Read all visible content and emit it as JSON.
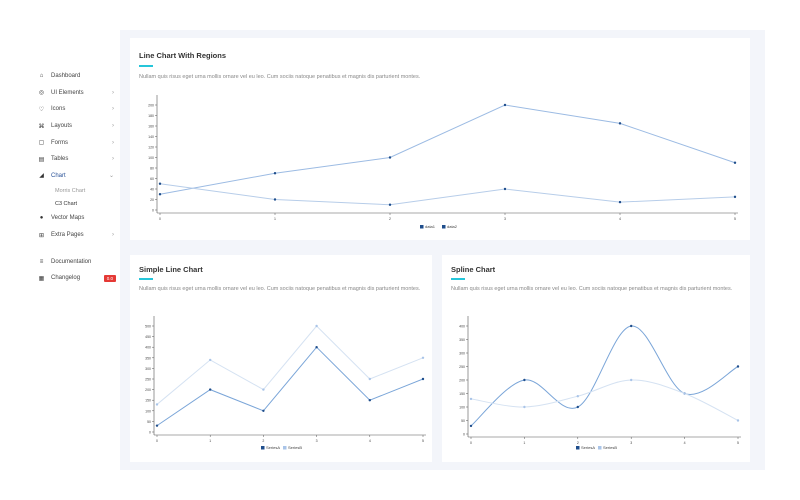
{
  "sidebar": {
    "items": [
      {
        "label": "Dashboard",
        "icon": "home-icon",
        "chev": false
      },
      {
        "label": "UI Elements",
        "icon": "globe-icon",
        "chev": true
      },
      {
        "label": "Icons",
        "icon": "heart-icon",
        "chev": true
      },
      {
        "label": "Layouts",
        "icon": "layout-icon",
        "chev": true
      },
      {
        "label": "Forms",
        "icon": "form-icon",
        "chev": true
      },
      {
        "label": "Tables",
        "icon": "table-icon",
        "chev": true
      },
      {
        "label": "Chart",
        "icon": "chart-icon",
        "chev": true,
        "open": true
      }
    ],
    "subitems": [
      "Morris Chart",
      "C3 Chart"
    ],
    "items2": [
      {
        "label": "Vector Maps",
        "icon": "map-pin-icon"
      },
      {
        "label": "Extra Pages",
        "icon": "pages-icon"
      }
    ],
    "items3": [
      {
        "label": "Documentation",
        "icon": "doc-icon"
      },
      {
        "label": "Changelog",
        "icon": "list-icon",
        "badge": "0.0"
      }
    ]
  },
  "description": "Nullam quis risus eget urna mollis ornare vel eu leo. Cum sociis natoque penatibus et magnis dis parturient montes.",
  "colors": {
    "dark": "#1f4e8c",
    "light": "#a9c4e8",
    "accent": "#26c6da"
  },
  "chart_data": [
    {
      "title": "Line Chart With Regions",
      "type": "line",
      "x": [
        0,
        1,
        2,
        3,
        4,
        5
      ],
      "ylim": [
        0,
        200
      ],
      "yticks": [
        0,
        20,
        40,
        60,
        80,
        100,
        120,
        140,
        160,
        180,
        200
      ],
      "series": [
        {
          "name": "data1",
          "values": [
            30,
            70,
            100,
            200,
            165,
            90
          ]
        },
        {
          "name": "data2",
          "values": [
            50,
            20,
            10,
            40,
            15,
            25
          ]
        }
      ]
    },
    {
      "title": "Simple Line Chart",
      "type": "line",
      "x": [
        0,
        1,
        2,
        3,
        4,
        5
      ],
      "ylim": [
        0,
        500
      ],
      "yticks": [
        0,
        50,
        100,
        150,
        200,
        250,
        300,
        350,
        400,
        450,
        500
      ],
      "series": [
        {
          "name": "SeriesA",
          "values": [
            30,
            200,
            100,
            400,
            150,
            250
          ]
        },
        {
          "name": "SeriesB",
          "values": [
            130,
            340,
            200,
            500,
            250,
            350
          ]
        }
      ]
    },
    {
      "title": "Spline Chart",
      "type": "spline",
      "x": [
        0,
        1,
        2,
        3,
        4,
        5
      ],
      "ylim": [
        0,
        400
      ],
      "yticks": [
        0,
        50,
        100,
        150,
        200,
        250,
        300,
        350,
        400
      ],
      "series": [
        {
          "name": "SeriesA",
          "values": [
            30,
            200,
            100,
            400,
            150,
            250
          ]
        },
        {
          "name": "SeriesB",
          "values": [
            130,
            100,
            140,
            200,
            150,
            50
          ]
        }
      ]
    }
  ]
}
